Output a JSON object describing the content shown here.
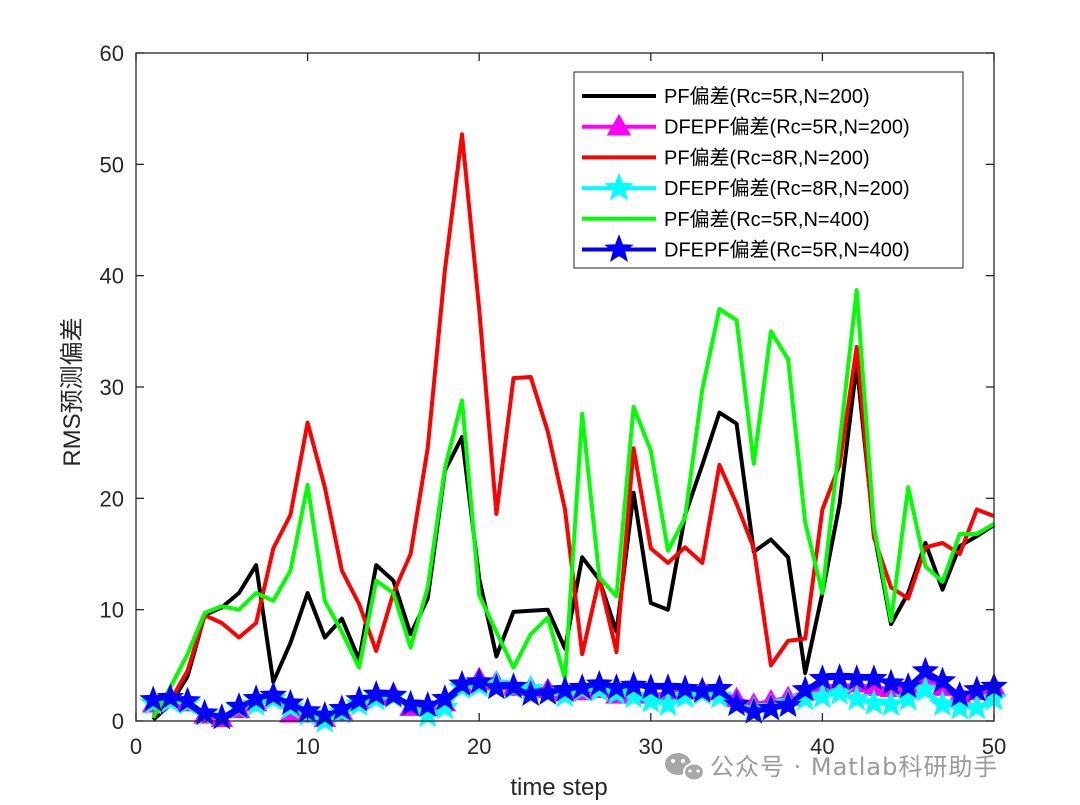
{
  "chart_data": {
    "type": "line",
    "title": "",
    "xlabel": "time step",
    "ylabel": "RMS预测偏差",
    "xlim": [
      0,
      50
    ],
    "ylim": [
      0,
      60
    ],
    "xticks": [
      0,
      10,
      20,
      30,
      40,
      50
    ],
    "yticks": [
      0,
      10,
      20,
      30,
      40,
      50,
      60
    ],
    "grid": false,
    "legend_position": "top-right",
    "x": [
      1,
      2,
      3,
      4,
      5,
      6,
      7,
      8,
      9,
      10,
      11,
      12,
      13,
      14,
      15,
      16,
      17,
      18,
      19,
      20,
      21,
      22,
      23,
      24,
      25,
      26,
      27,
      28,
      29,
      30,
      31,
      32,
      33,
      34,
      35,
      36,
      37,
      38,
      39,
      40,
      41,
      42,
      43,
      44,
      45,
      46,
      47,
      48,
      49,
      50
    ],
    "series": [
      {
        "name": "PF偏差(Rc=5R,N=200)",
        "color": "#000000",
        "marker": "none",
        "values": [
          0.1,
          1.5,
          4.0,
          9.5,
          10.2,
          11.5,
          14.0,
          3.5,
          7.0,
          11.5,
          7.5,
          9.2,
          5.5,
          14.0,
          12.6,
          7.8,
          11.0,
          22.5,
          25.5,
          12.8,
          5.8,
          9.8,
          9.9,
          10.0,
          6.5,
          14.7,
          12.7,
          8.0,
          20.5,
          10.6,
          10.0,
          18.5,
          23.0,
          27.7,
          26.7,
          15.2,
          16.3,
          14.7,
          4.3,
          11.5,
          19.5,
          32.0,
          17.0,
          8.7,
          11.5,
          16.0,
          11.8,
          15.7,
          16.6,
          17.6
        ]
      },
      {
        "name": "DFEPF偏差(Rc=5R,N=200)",
        "color": "#ff00ff",
        "marker": "triangle",
        "values": [
          1.5,
          2.0,
          1.6,
          0.5,
          0.2,
          1.0,
          1.6,
          2.3,
          0.6,
          0.6,
          0.2,
          0.8,
          1.8,
          2.2,
          2.4,
          1.2,
          1.2,
          1.6,
          3.2,
          3.8,
          3.5,
          3.0,
          3.0,
          2.8,
          2.5,
          2.6,
          2.8,
          2.3,
          2.5,
          2.3,
          2.5,
          2.7,
          2.8,
          2.6,
          2.0,
          1.5,
          1.8,
          2.1,
          2.6,
          3.2,
          3.1,
          3.3,
          3.0,
          2.9,
          3.1,
          4.0,
          3.0,
          2.4,
          2.6,
          3.1
        ]
      },
      {
        "name": "PF偏差(Rc=8R,N=200)",
        "color": "#ff0000",
        "marker": "none",
        "values": [
          0.5,
          1.8,
          4.5,
          9.5,
          8.8,
          7.5,
          8.8,
          15.5,
          18.5,
          26.8,
          21.0,
          13.5,
          10.5,
          6.3,
          11.5,
          15.0,
          24.5,
          40.5,
          52.7,
          37.0,
          18.6,
          30.8,
          30.9,
          26.0,
          19.0,
          6.0,
          12.8,
          6.2,
          24.5,
          15.5,
          14.2,
          15.6,
          14.2,
          23.0,
          19.5,
          15.5,
          5.0,
          7.2,
          7.4,
          19.0,
          23.0,
          33.6,
          16.5,
          12.0,
          11.0,
          15.6,
          16.0,
          15.0,
          19.0,
          18.4
        ]
      },
      {
        "name": "DFEPF偏差(Rc=8R,N=200)",
        "color": "#00ffff",
        "marker": "star",
        "values": [
          1.6,
          1.8,
          1.6,
          0.6,
          0.3,
          1.2,
          1.5,
          2.0,
          1.2,
          0.6,
          0.0,
          0.8,
          1.5,
          2.0,
          2.2,
          1.5,
          0.5,
          1.2,
          3.0,
          3.2,
          3.3,
          3.0,
          2.9,
          2.5,
          2.3,
          2.8,
          2.8,
          2.5,
          2.2,
          1.8,
          1.5,
          2.2,
          2.5,
          2.2,
          1.5,
          1.0,
          1.2,
          1.6,
          2.0,
          2.2,
          2.5,
          2.0,
          1.6,
          1.5,
          2.0,
          2.8,
          1.5,
          1.2,
          1.2,
          2.0
        ]
      },
      {
        "name": "PF偏差(Rc=5R,N=400)",
        "color": "#00ff00",
        "marker": "none",
        "values": [
          0.3,
          3.0,
          6.0,
          9.7,
          10.3,
          10.0,
          11.5,
          10.8,
          13.5,
          21.2,
          10.8,
          8.0,
          4.8,
          12.6,
          11.5,
          6.6,
          12.0,
          22.7,
          28.8,
          11.3,
          8.0,
          4.8,
          7.8,
          9.3,
          3.8,
          27.6,
          12.9,
          11.2,
          28.2,
          24.3,
          15.3,
          18.3,
          29.8,
          37.0,
          36.0,
          23.1,
          35.0,
          32.5,
          17.8,
          11.5,
          25.0,
          38.7,
          17.5,
          9.0,
          21.0,
          13.9,
          12.5,
          16.8,
          16.8,
          17.7
        ]
      },
      {
        "name": "DFEPF偏差(Rc=5R,N=400)",
        "color": "#0000ff",
        "marker": "star",
        "values": [
          1.9,
          2.1,
          1.8,
          0.7,
          0.3,
          1.3,
          2.0,
          2.3,
          1.6,
          0.9,
          0.5,
          1.1,
          1.9,
          2.4,
          2.3,
          1.5,
          1.4,
          2.0,
          3.3,
          3.5,
          3.0,
          3.1,
          2.4,
          2.5,
          2.8,
          3.0,
          3.3,
          3.0,
          3.2,
          3.0,
          3.0,
          2.9,
          2.7,
          2.9,
          1.5,
          0.8,
          1.1,
          1.4,
          2.8,
          3.8,
          3.9,
          3.8,
          3.8,
          3.4,
          3.1,
          4.5,
          3.6,
          2.3,
          2.8,
          3.1
        ]
      }
    ]
  },
  "watermark": {
    "text": "公众号 · Matlab科研助手",
    "icon": "wechat-icon"
  }
}
